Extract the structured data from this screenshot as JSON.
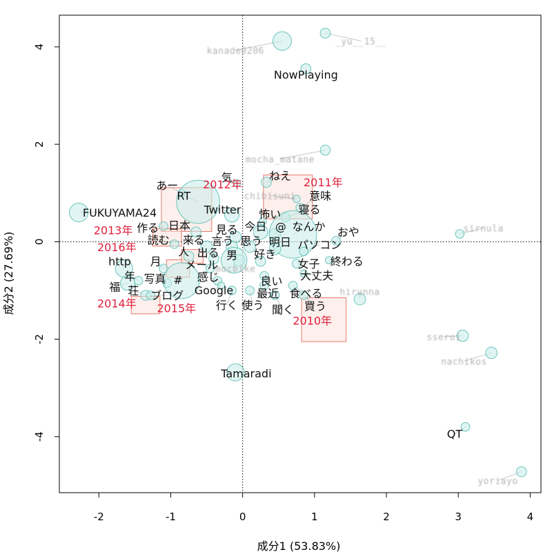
{
  "chart_data": {
    "type": "scatter",
    "subtype": "correspondence-analysis-biplot",
    "xlabel": "成分1 (53.83%)",
    "ylabel": "成分2 (27.69%)",
    "xlim": [
      -2.55,
      4.15
    ],
    "ylim": [
      -5.15,
      4.65
    ],
    "xticks": [
      -2,
      -1,
      0,
      1,
      2,
      3,
      4
    ],
    "yticks": [
      -4,
      -2,
      0,
      2,
      4
    ],
    "xtick_labels": [
      "-2",
      "-1",
      "0",
      "1",
      "2",
      "3",
      "4"
    ],
    "ytick_labels": [
      "-4",
      "-2",
      "0",
      "2",
      "4"
    ],
    "origin_lines": "dotted",
    "colors": {
      "bubble_fill": "#c7ede9",
      "bubble_stroke": "#6cc4bc",
      "year_text": "#e0203c",
      "year_box_fill": "#fbe2dc",
      "year_box_stroke": "#e87a6a",
      "word_text": "#111111",
      "blurred_text": "#9a9a9a"
    },
    "years": [
      {
        "label": "2010年",
        "x": 1.13,
        "y": -1.6,
        "w": 0.62,
        "h": 0.9
      },
      {
        "label": "2011年",
        "x": 0.63,
        "y": 0.92,
        "w": 0.68,
        "h": 0.9
      },
      {
        "label": "2012年",
        "x": -0.78,
        "y": 0.66,
        "w": 0.7,
        "h": 0.9
      },
      {
        "label": "2013年",
        "x": -1.05,
        "y": 0.09,
        "w": 0.4,
        "h": 0.36
      },
      {
        "label": "2014年",
        "x": -1.35,
        "y": -1.3,
        "w": 0.4,
        "h": 0.36
      },
      {
        "label": "2015年",
        "x": -0.9,
        "y": -0.55,
        "w": 0.32,
        "h": 0.36
      },
      {
        "label": "2016年",
        "x": -0.7,
        "y": -0.3,
        "w": 0.3,
        "h": 0.28
      }
    ],
    "year_labels": [
      {
        "label": "2010年",
        "x": 0.97,
        "y": -1.62
      },
      {
        "label": "2011年",
        "x": 1.12,
        "y": 1.22
      },
      {
        "label": "2012年",
        "x": -0.28,
        "y": 1.18
      },
      {
        "label": "2013年",
        "x": -1.8,
        "y": 0.24
      },
      {
        "label": "2014年",
        "x": -1.75,
        "y": -1.26
      },
      {
        "label": "2015年",
        "x": -0.92,
        "y": -1.36
      },
      {
        "label": "2016年",
        "x": -1.75,
        "y": -0.11
      }
    ],
    "words": [
      {
        "label": "FUKUYAMA24",
        "x": -1.71,
        "y": 0.6,
        "bx": -2.28,
        "by": 0.6,
        "r": 0.13
      },
      {
        "label": "NowPlaying",
        "x": 0.88,
        "y": 3.43,
        "bx": 0.88,
        "by": 3.55,
        "r": 0.07
      },
      {
        "label": "Tamaradi",
        "x": 0.05,
        "y": -2.7,
        "bx": -0.1,
        "by": -2.68,
        "r": 0.12
      },
      {
        "label": "QT",
        "x": 2.95,
        "y": -3.94,
        "bx": 3.1,
        "by": -3.8,
        "r": 0.06
      },
      {
        "label": "ねえ",
        "x": 0.52,
        "y": 1.36,
        "bx": 0.33,
        "by": 1.22,
        "r": 0.07
      },
      {
        "label": "あー",
        "x": -1.05,
        "y": 1.16,
        "bx": -0.85,
        "by": 1.0,
        "r": 0.05
      },
      {
        "label": "気",
        "x": -0.22,
        "y": 1.32,
        "bx": -0.08,
        "by": 1.2,
        "r": 0.05
      },
      {
        "label": "RT",
        "x": -0.82,
        "y": 0.95,
        "bx": -0.62,
        "by": 0.82,
        "r": 0.3
      },
      {
        "label": "意味",
        "x": 1.08,
        "y": 0.95,
        "bx": 0.8,
        "by": 0.7,
        "r": 0.06
      },
      {
        "label": "Twitter",
        "x": -0.28,
        "y": 0.66,
        "bx": -0.15,
        "by": 0.55,
        "r": 0.1
      },
      {
        "label": "寝る",
        "x": 0.93,
        "y": 0.66,
        "bx": 0.6,
        "by": 0.5,
        "r": 0.06
      },
      {
        "label": "怖い",
        "x": 0.38,
        "y": 0.57,
        "bx": 0.28,
        "by": 0.42,
        "r": 0.05
      },
      {
        "label": "作る",
        "x": -1.32,
        "y": 0.29,
        "bx": -1.1,
        "by": 0.32,
        "r": 0.06
      },
      {
        "label": "日本",
        "x": -0.88,
        "y": 0.34,
        "bx": -0.65,
        "by": 0.2,
        "r": 0.07
      },
      {
        "label": "今日",
        "x": 0.18,
        "y": 0.32,
        "bx": 0.25,
        "by": 0.2,
        "r": 0.1
      },
      {
        "label": "@",
        "x": 0.53,
        "y": 0.32,
        "bx": 0.45,
        "by": 0.15,
        "r": 0.08
      },
      {
        "label": "なんか",
        "x": 0.92,
        "y": 0.32,
        "bx": 0.7,
        "by": 0.15,
        "r": 0.33
      },
      {
        "label": "見る",
        "x": -0.22,
        "y": 0.25,
        "bx": -0.1,
        "by": 0.1,
        "r": 0.08
      },
      {
        "label": "おや",
        "x": 1.47,
        "y": 0.2,
        "bx": 1.3,
        "by": 0.02,
        "r": 0.06
      },
      {
        "label": "読む",
        "x": -1.17,
        "y": 0.04,
        "bx": -0.95,
        "by": -0.05,
        "r": 0.06
      },
      {
        "label": "来る",
        "x": -0.68,
        "y": 0.04,
        "bx": -0.5,
        "by": -0.1,
        "r": 0.08
      },
      {
        "label": "言う",
        "x": -0.28,
        "y": 0.02,
        "bx": -0.15,
        "by": -0.1,
        "r": 0.08
      },
      {
        "label": "思う",
        "x": 0.12,
        "y": 0.02,
        "bx": 0.1,
        "by": -0.1,
        "r": 0.08
      },
      {
        "label": "明日",
        "x": 0.52,
        "y": 0.0,
        "bx": 0.45,
        "by": -0.15,
        "r": 0.08
      },
      {
        "label": "パソコン",
        "x": 1.07,
        "y": -0.06,
        "bx": 0.85,
        "by": -0.2,
        "r": 0.06
      },
      {
        "label": "人",
        "x": -0.82,
        "y": -0.2,
        "bx": -0.75,
        "by": -0.3,
        "r": 0.07
      },
      {
        "label": "出る",
        "x": -0.48,
        "y": -0.22,
        "bx": -0.4,
        "by": -0.35,
        "r": 0.07
      },
      {
        "label": "男",
        "x": -0.15,
        "y": -0.27,
        "bx": -0.05,
        "by": -0.38,
        "r": 0.08
      },
      {
        "label": "好き",
        "x": 0.31,
        "y": -0.25,
        "bx": 0.25,
        "by": -0.4,
        "r": 0.07
      },
      {
        "label": "http",
        "x": -1.71,
        "y": -0.4,
        "bx": -1.65,
        "by": -0.55,
        "r": 0.12
      },
      {
        "label": "月",
        "x": -1.21,
        "y": -0.4,
        "bx": -1.1,
        "by": -0.55,
        "r": 0.06
      },
      {
        "label": "終わる",
        "x": 1.45,
        "y": -0.4,
        "bx": 1.2,
        "by": -0.38,
        "r": 0.05
      },
      {
        "label": "女子",
        "x": 0.92,
        "y": -0.45,
        "bx": 0.75,
        "by": -0.45,
        "r": 0.06
      },
      {
        "label": "メール",
        "x": -0.57,
        "y": -0.47,
        "bx": -0.45,
        "by": -0.55,
        "r": 0.06
      },
      {
        "label": "年",
        "x": -1.57,
        "y": -0.7,
        "bx": -1.45,
        "by": -0.8,
        "r": 0.06
      },
      {
        "label": "写真",
        "x": -1.22,
        "y": -0.75,
        "bx": -1.05,
        "by": -0.85,
        "r": 0.06
      },
      {
        "label": "#",
        "x": -0.9,
        "y": -0.78,
        "bx": -0.85,
        "by": -0.8,
        "r": 0.25
      },
      {
        "label": "感じ",
        "x": -0.48,
        "y": -0.72,
        "bx": -0.35,
        "by": -0.8,
        "r": 0.06
      },
      {
        "label": "大丈夫",
        "x": 1.03,
        "y": -0.69,
        "bx": 0.85,
        "by": -0.65,
        "r": 0.05
      },
      {
        "label": "良い",
        "x": 0.4,
        "y": -0.8,
        "bx": 0.3,
        "by": -0.7,
        "r": 0.06
      },
      {
        "label": "福",
        "x": -1.78,
        "y": -0.92,
        "bx": -1.6,
        "by": -0.85,
        "r": 0.1
      },
      {
        "label": "荘",
        "x": -1.52,
        "y": -1.0,
        "bx": -1.35,
        "by": -1.1,
        "r": 0.07
      },
      {
        "label": "Google",
        "x": -0.4,
        "y": -0.99,
        "bx": -0.3,
        "by": -0.9,
        "r": 0.05
      },
      {
        "label": "ブログ",
        "x": -1.05,
        "y": -1.1,
        "bx": -1.28,
        "by": -1.1,
        "r": 0.06
      },
      {
        "label": "最近",
        "x": 0.35,
        "y": -1.06,
        "bx": 0.3,
        "by": -0.9,
        "r": 0.06
      },
      {
        "label": "食べる",
        "x": 0.88,
        "y": -1.06,
        "bx": 0.7,
        "by": -0.9,
        "r": 0.06
      },
      {
        "label": "行く",
        "x": -0.22,
        "y": -1.3,
        "bx": -0.15,
        "by": -1.0,
        "r": 0.06
      },
      {
        "label": "使う",
        "x": 0.14,
        "y": -1.3,
        "bx": 0.1,
        "by": -1.0,
        "r": 0.06
      },
      {
        "label": "買う",
        "x": 1.01,
        "y": -1.32,
        "bx": 0.85,
        "by": -1.1,
        "r": 0.06
      },
      {
        "label": "聞く",
        "x": 0.56,
        "y": -1.39,
        "bx": 0.45,
        "by": -1.1,
        "r": 0.06
      }
    ],
    "blurred_users": [
      {
        "label": "kanade0206",
        "x": -0.1,
        "y": 3.93,
        "bx": 0.55,
        "by": 4.12,
        "r": 0.13
      },
      {
        "label": "_yu__15__",
        "x": 1.65,
        "y": 4.12,
        "bx": 1.15,
        "by": 4.28,
        "r": 0.07
      },
      {
        "label": "mocha_matane",
        "x": 0.52,
        "y": 1.7,
        "bx": 1.15,
        "by": 1.88,
        "r": 0.07
      },
      {
        "label": "chibisuni",
        "x": 0.38,
        "y": 0.95,
        "bx": 0.75,
        "by": 0.88,
        "r": 0.05
      },
      {
        "label": "sirnula",
        "x": 3.35,
        "y": 0.28,
        "bx": 3.02,
        "by": 0.16,
        "r": 0.06
      },
      {
        "label": "mocbike",
        "x": -0.1,
        "y": -0.55,
        "bx": -0.12,
        "by": -0.38,
        "r": 0.18
      },
      {
        "label": "hirunna",
        "x": 1.63,
        "y": -1.02,
        "bx": 1.63,
        "by": -1.18,
        "r": 0.08
      },
      {
        "label": "sseroi",
        "x": 2.8,
        "y": -1.95,
        "bx": 3.06,
        "by": -1.93,
        "r": 0.08
      },
      {
        "label": "nachikos",
        "x": 3.08,
        "y": -2.45,
        "bx": 3.46,
        "by": -2.28,
        "r": 0.08
      },
      {
        "label": "yoriayo",
        "x": 3.55,
        "y": -4.9,
        "bx": 3.88,
        "by": -4.72,
        "r": 0.07
      }
    ]
  }
}
